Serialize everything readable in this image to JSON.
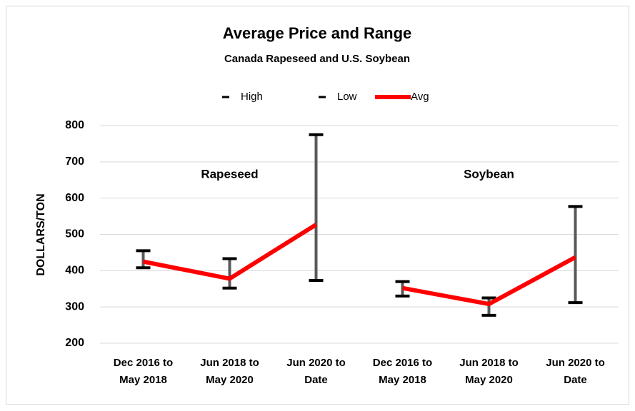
{
  "chart_data": {
    "type": "line",
    "title": "Average Price and Range",
    "subtitle": "Canada Rapeseed and U.S. Soybean",
    "y_label": "DOLLARS/TON",
    "categories": [
      "Dec 2016 to\nMay 2018",
      "Jun 2018 to\nMay 2020",
      "Jun 2020 to\nDate",
      "Dec 2016 to\nMay 2018",
      "Jun 2018 to\nMay 2020",
      "Jun 2020 to\nDate"
    ],
    "groups": [
      {
        "label": "Rapeseed",
        "size": 3
      },
      {
        "label": "Soybean",
        "size": 3
      }
    ],
    "series": [
      {
        "name": "High",
        "color": "#000000",
        "values": [
          455,
          433,
          775,
          370,
          325,
          577
        ]
      },
      {
        "name": "Low",
        "color": "#000000",
        "values": [
          408,
          352,
          373,
          330,
          277,
          312
        ]
      },
      {
        "name": "Avg",
        "color": "#ff0000",
        "values": [
          425,
          378,
          527,
          352,
          308,
          437
        ]
      }
    ],
    "range_color": "#595959",
    "ylim": [
      200,
      800
    ],
    "yticks": [
      200,
      300,
      400,
      500,
      600,
      700,
      800
    ],
    "grid": true
  }
}
